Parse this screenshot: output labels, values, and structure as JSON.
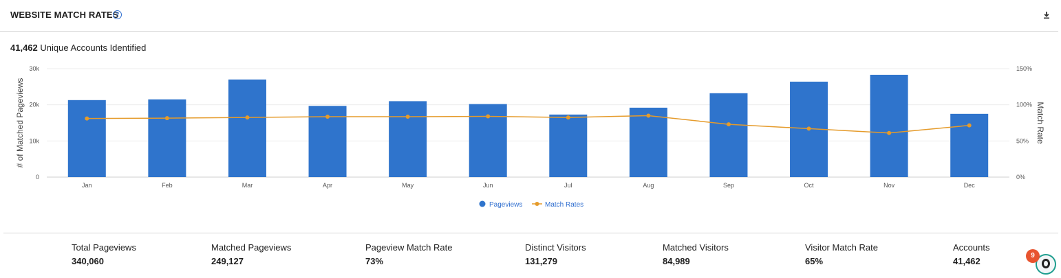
{
  "header": {
    "title": "WEBSITE MATCH RATES",
    "help_icon": "question-circle-icon",
    "download_icon": "download-icon"
  },
  "summary": {
    "count": "41,462",
    "label": "Unique Accounts Identified"
  },
  "chart_data": {
    "type": "bar",
    "categories": [
      "Jan",
      "Feb",
      "Mar",
      "Apr",
      "May",
      "Jun",
      "Jul",
      "Aug",
      "Sep",
      "Oct",
      "Nov",
      "Dec"
    ],
    "series": [
      {
        "name": "Pageviews",
        "type": "bar",
        "axis": "left",
        "color": "#2f74cc",
        "values": [
          21300,
          21500,
          27000,
          19700,
          21000,
          20200,
          17300,
          19200,
          23200,
          26400,
          28300,
          17500
        ]
      },
      {
        "name": "Match Rates",
        "type": "line",
        "axis": "right",
        "color": "#e59b2b",
        "values": [
          81,
          81.5,
          82.5,
          83.5,
          83.5,
          84,
          82.5,
          85,
          73,
          67,
          61,
          71.5
        ]
      }
    ],
    "ylabel": "# of Matched Pageviews",
    "y2label": "Match Rate",
    "ylim": [
      0,
      30000
    ],
    "y2lim": [
      0,
      150
    ],
    "yticks": [
      "0",
      "10k",
      "20k",
      "30k"
    ],
    "y2ticks": [
      "0%",
      "50%",
      "100%",
      "150%"
    ],
    "grid": true,
    "legend_position": "bottom-center"
  },
  "stats": [
    {
      "label": "Total Pageviews",
      "value": "340,060"
    },
    {
      "label": "Matched Pageviews",
      "value": "249,127"
    },
    {
      "label": "Pageview Match Rate",
      "value": "73%"
    },
    {
      "label": "Distinct Visitors",
      "value": "131,279"
    },
    {
      "label": "Matched Visitors",
      "value": "84,989"
    },
    {
      "label": "Visitor Match Rate",
      "value": "65%"
    },
    {
      "label": "Accounts",
      "value": "41,462"
    }
  ],
  "widget": {
    "badge_count": "9",
    "icon": "assistant-launcher-icon"
  }
}
